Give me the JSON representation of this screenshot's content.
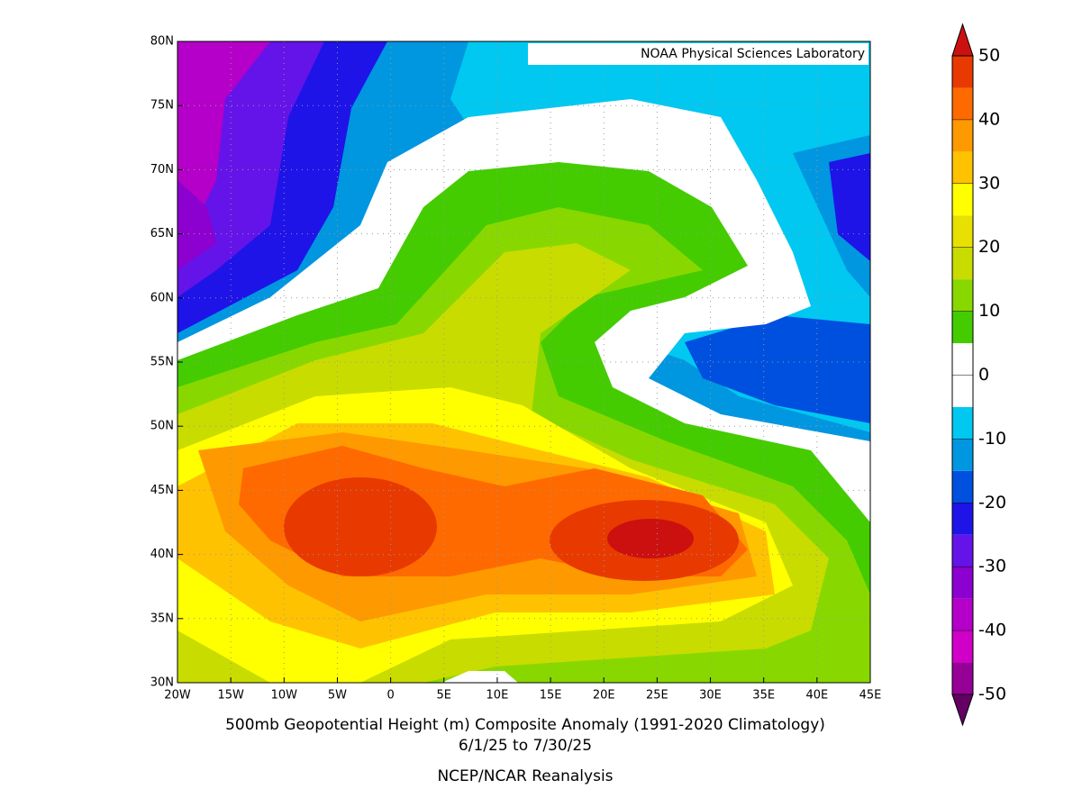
{
  "map": {
    "credit": "NOAA Physical Sciences Laboratory",
    "xlim": [
      -20,
      45
    ],
    "ylim": [
      30,
      80
    ],
    "xticks": [
      {
        "value": -20,
        "label": "20W"
      },
      {
        "value": -15,
        "label": "15W"
      },
      {
        "value": -10,
        "label": "10W"
      },
      {
        "value": -5,
        "label": "5W"
      },
      0,
      {
        "value": 5,
        "label": "5E"
      },
      {
        "value": 10,
        "label": "10E"
      },
      {
        "value": 15,
        "label": "15E"
      },
      {
        "value": 20,
        "label": "20E"
      },
      {
        "value": 25,
        "label": "25E"
      },
      {
        "value": 30,
        "label": "30E"
      },
      {
        "value": 35,
        "label": "35E"
      },
      {
        "value": 40,
        "label": "40E"
      },
      {
        "value": 45,
        "label": "45E"
      }
    ],
    "yticks": [
      {
        "value": 30,
        "label": "30N"
      },
      {
        "value": 35,
        "label": "35N"
      },
      {
        "value": 40,
        "label": "40N"
      },
      {
        "value": 45,
        "label": "45N"
      },
      {
        "value": 50,
        "label": "50N"
      },
      {
        "value": 55,
        "label": "55N"
      },
      {
        "value": 60,
        "label": "60N"
      },
      {
        "value": 65,
        "label": "65N"
      },
      {
        "value": 70,
        "label": "70N"
      },
      {
        "value": 75,
        "label": "75N"
      },
      {
        "value": 80,
        "label": "80N"
      }
    ],
    "grid": true
  },
  "title": "500mb Geopotential Height (m) Composite Anomaly (1991-2020 Climatology)",
  "dates": "6/1/25  to 7/30/25",
  "source": "NCEP/NCAR Reanalysis",
  "colorbar": {
    "levels": [
      -50,
      -45,
      -40,
      -35,
      -30,
      -25,
      -20,
      -15,
      -10,
      -5,
      0,
      5,
      10,
      15,
      20,
      25,
      30,
      35,
      40,
      45,
      50
    ],
    "colors": [
      "#640064",
      "#960096",
      "#d000c8",
      "#b400c8",
      "#8c00d0",
      "#6414e8",
      "#1e14e8",
      "#0050e0",
      "#0096e0",
      "#00c8f0",
      "#ffffff",
      "#ffffff",
      "#44cc00",
      "#88d800",
      "#c8dc00",
      "#e8e000",
      "#ffff00",
      "#ffc200",
      "#ff9900",
      "#ff6a00",
      "#e83a00",
      "#cc1010"
    ],
    "ticks": [
      -50,
      -40,
      -30,
      -20,
      -10,
      0,
      10,
      20,
      30,
      40,
      50
    ]
  }
}
